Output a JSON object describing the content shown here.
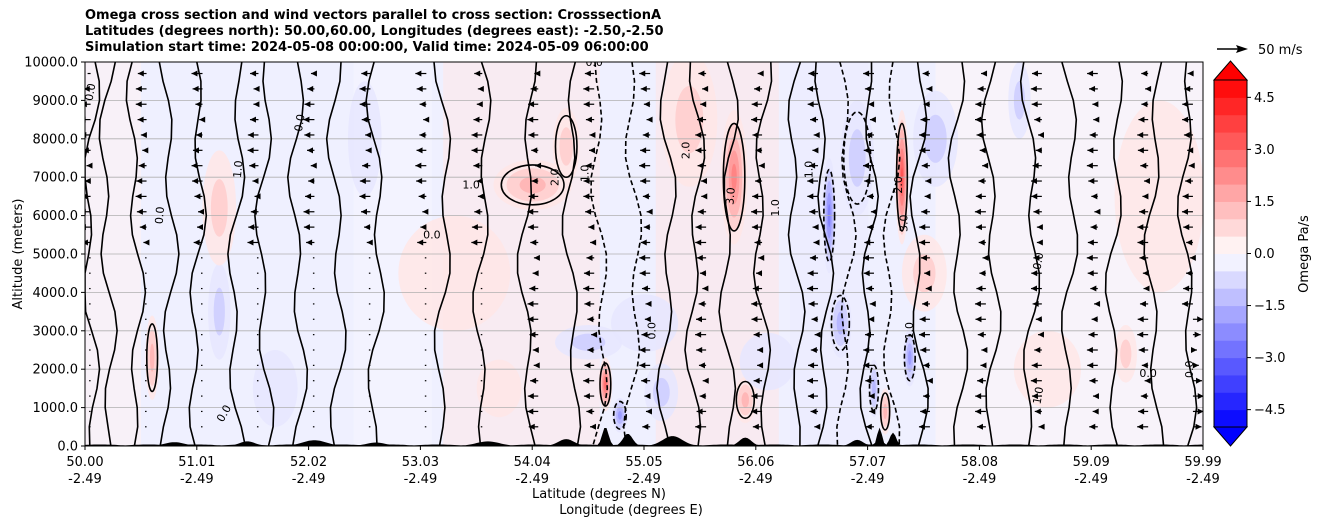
{
  "title": {
    "line1": "Omega cross section and wind vectors parallel to cross section: CrosssectionA",
    "line2": "Latitudes (degrees north): 50.00,60.00, Longitudes (degrees east): -2.50,-2.50",
    "line3": "Simulation start time: 2024-05-08 00:00:00, Valid time: 2024-05-09 06:00:00"
  },
  "legend": {
    "vector_key_label": "50 m/s"
  },
  "colors": {
    "positive": "#ff0000",
    "negative": "#0000ff",
    "contour": "#000000",
    "terrain": "#000000"
  },
  "chart_data": {
    "type": "heatmap",
    "xlabel": "Latitude (degrees N)",
    "xlabel2": "Longitude (degrees E)",
    "ylabel": "Altitude (meters)",
    "colorbar_label": "Omega Pa/s",
    "xlim": [
      50.0,
      59.99
    ],
    "ylim": [
      0,
      10000
    ],
    "x_ticks": [
      {
        "lat": "50.00",
        "lon": "-2.49"
      },
      {
        "lat": "51.01",
        "lon": "-2.49"
      },
      {
        "lat": "52.02",
        "lon": "-2.49"
      },
      {
        "lat": "53.03",
        "lon": "-2.49"
      },
      {
        "lat": "54.04",
        "lon": "-2.49"
      },
      {
        "lat": "55.05",
        "lon": "-2.49"
      },
      {
        "lat": "56.06",
        "lon": "-2.49"
      },
      {
        "lat": "57.07",
        "lon": "-2.49"
      },
      {
        "lat": "58.08",
        "lon": "-2.49"
      },
      {
        "lat": "59.09",
        "lon": "-2.49"
      },
      {
        "lat": "59.99",
        "lon": "-2.49"
      }
    ],
    "y_ticks": [
      "0.0",
      "1000.0",
      "2000.0",
      "3000.0",
      "4000.0",
      "5000.0",
      "6000.0",
      "7000.0",
      "8000.0",
      "9000.0",
      "10000.0"
    ],
    "colorbar": {
      "range": [
        -5,
        5
      ],
      "ticks": [
        "4.5",
        "3.0",
        "1.5",
        "0.0",
        "−1.5",
        "−3.0",
        "−4.5"
      ],
      "extend": "both"
    },
    "grid": true,
    "omega_features": [
      {
        "lat": 50.6,
        "alt": 2300,
        "value": 1.5,
        "width": 0.06,
        "height": 2200
      },
      {
        "lat": 51.2,
        "alt": 3500,
        "value": -1.0,
        "width": 0.1,
        "height": 2500
      },
      {
        "lat": 51.2,
        "alt": 6200,
        "value": 0.8,
        "width": 0.15,
        "height": 3000
      },
      {
        "lat": 51.7,
        "alt": 1500,
        "value": -0.6,
        "width": 0.2,
        "height": 2000
      },
      {
        "lat": 52.5,
        "alt": 8000,
        "value": -0.7,
        "width": 0.15,
        "height": 3000
      },
      {
        "lat": 53.3,
        "alt": 4500,
        "value": 0.4,
        "width": 0.5,
        "height": 3000
      },
      {
        "lat": 53.7,
        "alt": 1500,
        "value": 0.7,
        "width": 0.2,
        "height": 1500
      },
      {
        "lat": 54.0,
        "alt": 6800,
        "value": 1.6,
        "width": 0.35,
        "height": 1300
      },
      {
        "lat": 54.3,
        "alt": 7800,
        "value": 1.2,
        "width": 0.12,
        "height": 2000
      },
      {
        "lat": 54.5,
        "alt": 2700,
        "value": -0.9,
        "width": 0.3,
        "height": 900
      },
      {
        "lat": 54.65,
        "alt": 1600,
        "value": 2.8,
        "width": 0.06,
        "height": 1400
      },
      {
        "lat": 54.78,
        "alt": 800,
        "value": -2.2,
        "width": 0.07,
        "height": 900
      },
      {
        "lat": 55.0,
        "alt": 3200,
        "value": -0.7,
        "width": 0.3,
        "height": 1500
      },
      {
        "lat": 55.15,
        "alt": 1400,
        "value": -0.9,
        "width": 0.15,
        "height": 1500
      },
      {
        "lat": 55.4,
        "alt": 8500,
        "value": 1.0,
        "width": 0.25,
        "height": 3500
      },
      {
        "lat": 55.8,
        "alt": 7000,
        "value": 2.6,
        "width": 0.12,
        "height": 3500
      },
      {
        "lat": 55.9,
        "alt": 1200,
        "value": 1.5,
        "width": 0.1,
        "height": 1200
      },
      {
        "lat": 56.1,
        "alt": 2200,
        "value": -0.6,
        "width": 0.25,
        "height": 1500
      },
      {
        "lat": 56.65,
        "alt": 6000,
        "value": -2.4,
        "width": 0.06,
        "height": 3000
      },
      {
        "lat": 56.75,
        "alt": 3200,
        "value": -1.3,
        "width": 0.1,
        "height": 1800
      },
      {
        "lat": 56.9,
        "alt": 7500,
        "value": -1.2,
        "width": 0.15,
        "height": 3000
      },
      {
        "lat": 57.05,
        "alt": 1500,
        "value": -1.6,
        "width": 0.05,
        "height": 1500
      },
      {
        "lat": 57.15,
        "alt": 900,
        "value": 1.3,
        "width": 0.05,
        "height": 1200
      },
      {
        "lat": 57.3,
        "alt": 7000,
        "value": 3.4,
        "width": 0.06,
        "height": 3500
      },
      {
        "lat": 57.37,
        "alt": 2300,
        "value": -2.0,
        "width": 0.06,
        "height": 1500
      },
      {
        "lat": 57.5,
        "alt": 4500,
        "value": 0.8,
        "width": 0.2,
        "height": 2000
      },
      {
        "lat": 57.6,
        "alt": 8000,
        "value": -0.8,
        "width": 0.2,
        "height": 2500
      },
      {
        "lat": 58.35,
        "alt": 9000,
        "value": -1.0,
        "width": 0.1,
        "height": 2000
      },
      {
        "lat": 58.6,
        "alt": 2000,
        "value": 0.6,
        "width": 0.3,
        "height": 2000
      },
      {
        "lat": 59.3,
        "alt": 2400,
        "value": 0.8,
        "width": 0.1,
        "height": 1500
      },
      {
        "lat": 59.6,
        "alt": 6500,
        "value": 0.3,
        "width": 0.4,
        "height": 5000
      }
    ],
    "terrain_peaks": [
      {
        "lat": 50.8,
        "alt": 100,
        "width": 0.25
      },
      {
        "lat": 51.45,
        "alt": 120,
        "width": 0.2
      },
      {
        "lat": 52.05,
        "alt": 150,
        "width": 0.3
      },
      {
        "lat": 52.6,
        "alt": 90,
        "width": 0.25
      },
      {
        "lat": 53.6,
        "alt": 120,
        "width": 0.3
      },
      {
        "lat": 54.3,
        "alt": 180,
        "width": 0.2
      },
      {
        "lat": 54.65,
        "alt": 500,
        "width": 0.08
      },
      {
        "lat": 54.85,
        "alt": 320,
        "width": 0.12
      },
      {
        "lat": 55.25,
        "alt": 260,
        "width": 0.25
      },
      {
        "lat": 55.9,
        "alt": 220,
        "width": 0.15
      },
      {
        "lat": 56.9,
        "alt": 160,
        "width": 0.15
      },
      {
        "lat": 57.1,
        "alt": 480,
        "width": 0.06
      },
      {
        "lat": 57.22,
        "alt": 350,
        "width": 0.08
      }
    ],
    "contour_labels": [
      {
        "text": "0.0",
        "lat": 50.08,
        "alt": 9200,
        "angle": -80
      },
      {
        "text": "0.0",
        "lat": 51.27,
        "alt": 800,
        "angle": -60
      },
      {
        "text": "1.0",
        "lat": 51.4,
        "alt": 7200,
        "angle": -85
      },
      {
        "text": "0.0",
        "lat": 51.95,
        "alt": 8400,
        "angle": -80
      },
      {
        "text": "0.0",
        "lat": 53.1,
        "alt": 5400,
        "angle": 0
      },
      {
        "text": "1.0",
        "lat": 53.45,
        "alt": 6700,
        "angle": 0
      },
      {
        "text": "2.0",
        "lat": 54.23,
        "alt": 7000,
        "angle": -90
      },
      {
        "text": "1.0",
        "lat": 54.5,
        "alt": 7100,
        "angle": -90
      },
      {
        "text": "0.0",
        "lat": 54.55,
        "alt": 9900,
        "angle": 0
      },
      {
        "text": "2.0",
        "lat": 55.4,
        "alt": 7700,
        "angle": -90
      },
      {
        "text": "3.0",
        "lat": 55.8,
        "alt": 6500,
        "angle": -85
      },
      {
        "text": "1.0",
        "lat": 56.2,
        "alt": 6200,
        "angle": -90
      },
      {
        "text": "2.0",
        "lat": 57.3,
        "alt": 6800,
        "angle": -90
      },
      {
        "text": "3.0",
        "lat": 57.35,
        "alt": 5800,
        "angle": -90
      },
      {
        "text": "1.0",
        "lat": 57.4,
        "alt": 3000,
        "angle": -90
      },
      {
        "text": "0.0",
        "lat": 58.55,
        "alt": 4800,
        "angle": -80
      },
      {
        "text": "0.0",
        "lat": 59.5,
        "alt": 1800,
        "angle": 0
      },
      {
        "text": "1.0",
        "lat": 58.55,
        "alt": 1300,
        "angle": -80
      },
      {
        "text": "0.0",
        "lat": 59.9,
        "alt": 2000,
        "angle": -90
      },
      {
        "text": "0.0",
        "lat": 50.7,
        "alt": 6000,
        "angle": -85
      },
      {
        "text": "0.0",
        "lat": 55.1,
        "alt": 3000,
        "angle": -90
      },
      {
        "text": "1.0",
        "lat": 56.5,
        "alt": 7200,
        "angle": -90
      }
    ],
    "wind_vector_rows": [
      9700,
      9300,
      8900,
      8500,
      8100,
      7700,
      7300,
      6900,
      6500,
      6100,
      5700,
      5300,
      4900,
      4500,
      4100,
      3700,
      3300,
      2900,
      2500,
      2100,
      1700,
      1300,
      900,
      500
    ],
    "wind_vector_cols": [
      50.05,
      50.55,
      51.05,
      51.55,
      52.05,
      52.55,
      53.05,
      53.55,
      54.05,
      54.55,
      55.05,
      55.55,
      56.05,
      56.55,
      57.05,
      57.55,
      58.05,
      58.55,
      59.05,
      59.5,
      59.9
    ]
  }
}
